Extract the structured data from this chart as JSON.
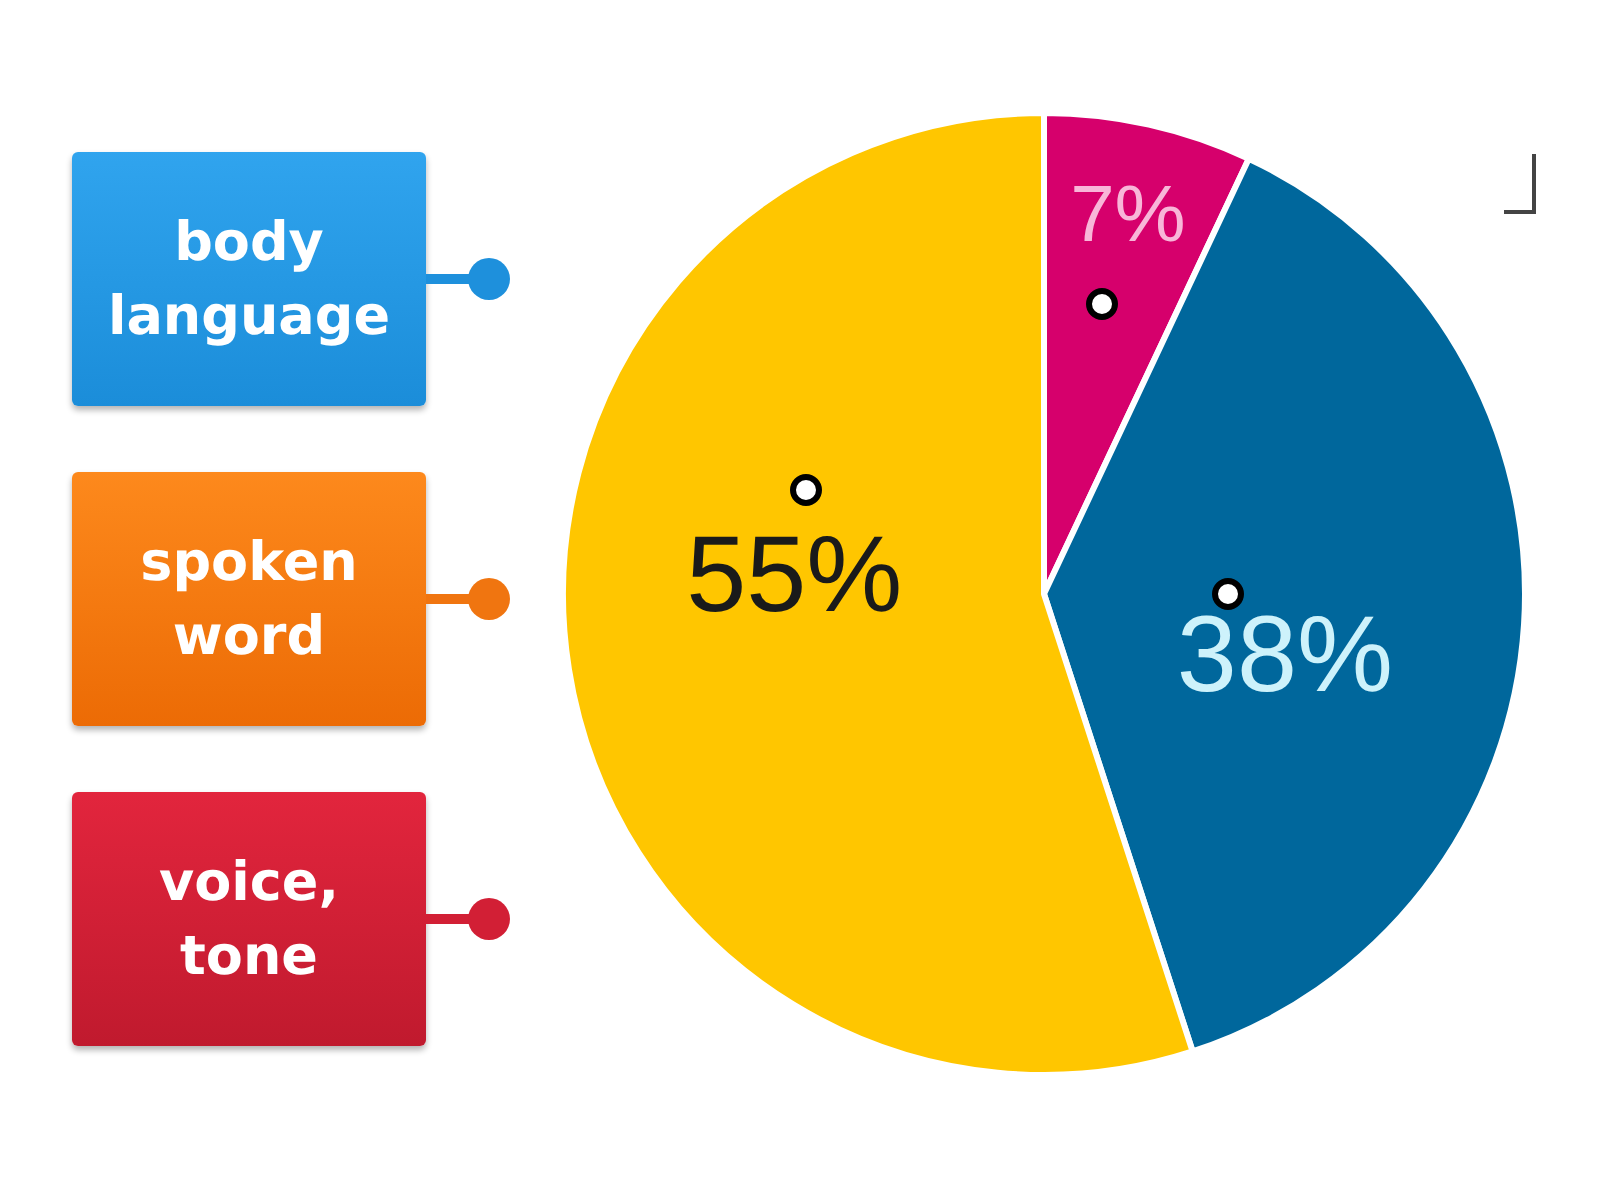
{
  "chart_data": {
    "type": "pie",
    "categories": [
      null,
      null,
      null
    ],
    "values": [
      7,
      38,
      55
    ],
    "colors": [
      "#d6006c",
      "#00679c",
      "#ffc600"
    ],
    "value_labels": [
      "7%",
      "38%",
      "55%"
    ],
    "annotations": [
      "body language",
      "spoken word",
      "voice, tone"
    ]
  }
}
